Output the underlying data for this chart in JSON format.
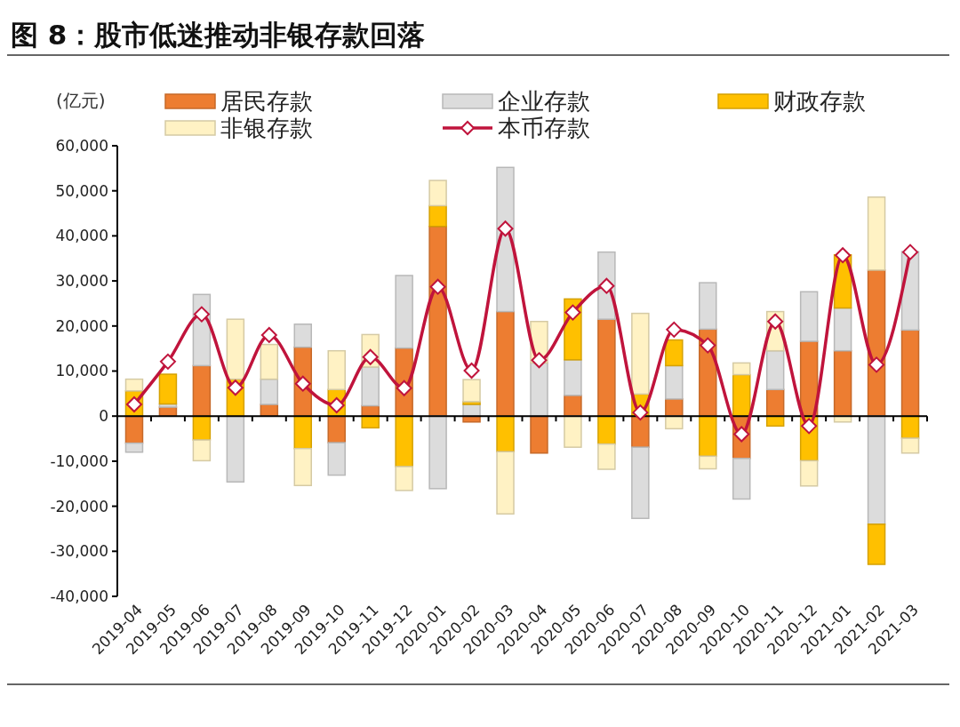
{
  "chart_data": {
    "type": "bar",
    "title": "图 8：股市低迷推动非银存款回落",
    "ylabel": "(亿元)",
    "categories": [
      "2019-04",
      "2019-05",
      "2019-06",
      "2019-07",
      "2019-08",
      "2019-09",
      "2019-10",
      "2019-11",
      "2019-12",
      "2020-01",
      "2020-02",
      "2020-03",
      "2020-04",
      "2020-05",
      "2020-06",
      "2020-07",
      "2020-08",
      "2020-09",
      "2020-10",
      "2020-11",
      "2020-12",
      "2021-01",
      "2021-02",
      "2021-03"
    ],
    "series": [
      {
        "name": "居民存款",
        "color": "#ed7d31",
        "values": [
          -6000,
          2000,
          11200,
          null,
          2600,
          15300,
          -5900,
          2300,
          15100,
          42100,
          -1300,
          23200,
          -8200,
          4600,
          21500,
          -6900,
          3800,
          19300,
          -9400,
          5900,
          16600,
          14500,
          32400,
          19100
        ]
      },
      {
        "name": "企业存款",
        "color": "#dcdcdc",
        "values": [
          -2000,
          700,
          15800,
          -14600,
          5600,
          5100,
          -7200,
          8600,
          16100,
          -16100,
          2600,
          32000,
          11800,
          7900,
          14900,
          -15800,
          7400,
          10300,
          -9000,
          8600,
          11000,
          9500,
          -24000,
          17400
        ]
      },
      {
        "name": "财政存款",
        "color": "#ffc000",
        "values": [
          5600,
          6600,
          -5300,
          8200,
          0,
          -7200,
          5900,
          -2600,
          -11200,
          4600,
          600,
          -7900,
          0,
          13500,
          -6200,
          4900,
          5700,
          -8900,
          9200,
          -2200,
          -9900,
          11800,
          -8900,
          -4900
        ]
      },
      {
        "name": "非银存款",
        "color": "#fff2c4",
        "values": [
          2600,
          0,
          -4600,
          13300,
          7700,
          -8200,
          8600,
          7200,
          -5300,
          5600,
          4900,
          -13800,
          9200,
          -6900,
          -5600,
          17900,
          -2800,
          -2800,
          2600,
          8700,
          -5600,
          -1300,
          16200,
          -3300
        ]
      },
      {
        "name": "本币存款",
        "type": "line",
        "color": "#c0143c",
        "marker": "diamond",
        "values": [
          2600,
          12100,
          22600,
          6300,
          18000,
          7200,
          2400,
          13100,
          6200,
          28700,
          10100,
          41600,
          12400,
          23000,
          28900,
          800,
          19200,
          15700,
          -4000,
          21000,
          -2200,
          35700,
          11400,
          36400
        ]
      }
    ],
    "stacked": true,
    "ylim": [
      -40000,
      60000
    ],
    "yticks": [
      {
        "value": -40000,
        "label": "-40,000"
      },
      {
        "value": -30000,
        "label": "-30,000"
      },
      {
        "value": -20000,
        "label": "-20,000"
      },
      {
        "value": -10000,
        "label": "-10,000"
      },
      0,
      {
        "value": 10000,
        "label": "10,000"
      },
      {
        "value": 20000,
        "label": "20,000"
      },
      {
        "value": 30000,
        "label": "30,000"
      },
      {
        "value": 40000,
        "label": "40,000"
      },
      {
        "value": 50000,
        "label": "50,000"
      },
      {
        "value": 60000,
        "label": "60,000"
      }
    ],
    "legend": "top"
  }
}
